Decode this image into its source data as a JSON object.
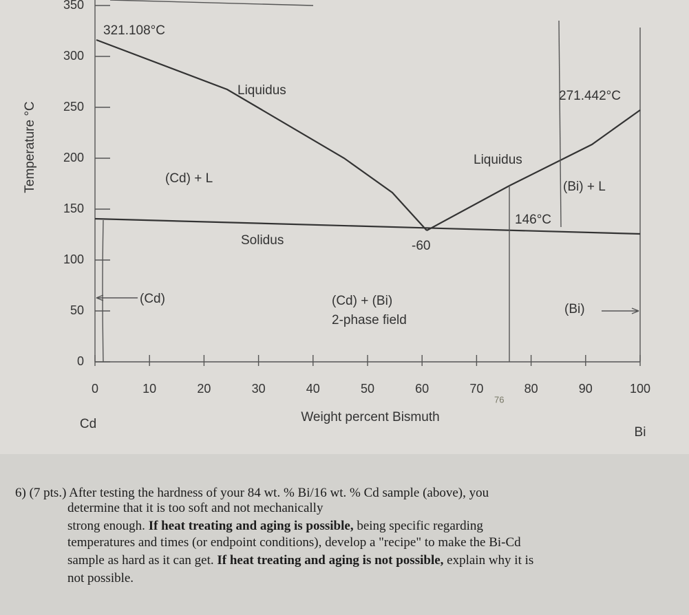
{
  "diagram": {
    "y_axis_label": "Temperature °C",
    "x_axis_label": "Weight percent Bismuth",
    "yticks": [
      0,
      50,
      100,
      150,
      200,
      250,
      300,
      350
    ],
    "xticks": [
      0,
      10,
      20,
      30,
      40,
      50,
      60,
      70,
      80,
      90,
      100
    ],
    "left_end": "Cd",
    "right_end": "Bi",
    "cd_melting": "321.108°C",
    "bi_melting": "271.442°C",
    "eutectic_temp": "146°C",
    "eutectic_comp": "-60",
    "handwritten_mark": "76",
    "regions": {
      "liquidus_left": "Liquidus",
      "liquidus_right": "Liquidus",
      "cd_plus_l": "(Cd) + L",
      "bi_plus_l": "(Bi) + L",
      "solidus": "Solidus",
      "cd": "(Cd)",
      "two_phase_1": "(Cd) + (Bi)",
      "two_phase_2": "2-phase field",
      "bi": "(Bi)"
    }
  },
  "question": {
    "lines": [
      {
        "segments": [
          {
            "text": "6) (7 pts.) After testing the hardness of your 84 wt. % Bi/16 wt. % Cd sample (above), you"
          }
        ]
      },
      {
        "segments": [
          {
            "text": "determine that it is too soft and not mechanically"
          }
        ]
      },
      {
        "segments": [
          {
            "text": "strong enough. "
          },
          {
            "text": "If heat treating and aging is possible,",
            "bold": true
          },
          {
            "text": " being specific regarding"
          }
        ]
      },
      {
        "segments": [
          {
            "text": "temperatures and times (or endpoint conditions), develop a \"recipe\" to make the Bi-Cd"
          }
        ]
      },
      {
        "segments": [
          {
            "text": "sample as hard as it can get. "
          },
          {
            "text": "If heat treating and aging is not possible,",
            "bold": true
          },
          {
            "text": " explain why it is"
          }
        ]
      },
      {
        "segments": [
          {
            "text": "not possible."
          }
        ]
      }
    ]
  }
}
